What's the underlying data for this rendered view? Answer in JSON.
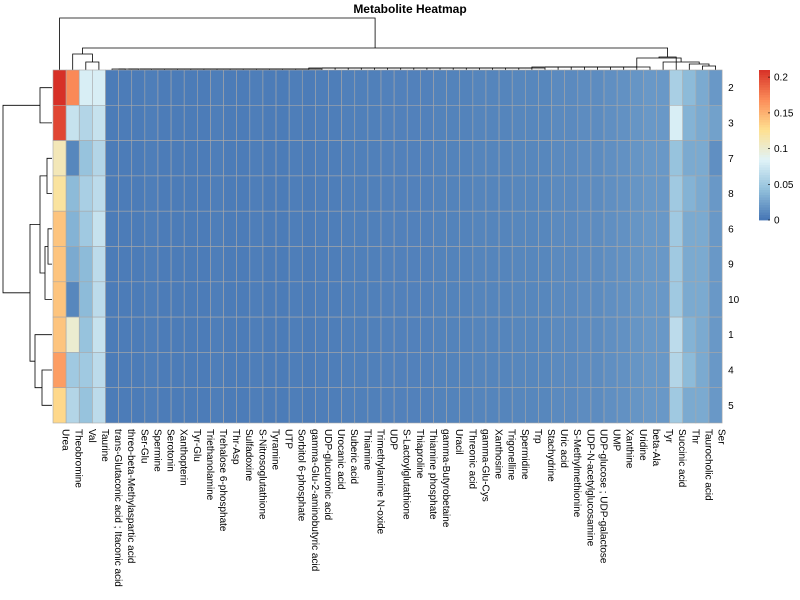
{
  "chart_data": {
    "type": "heatmap",
    "title": "Metabolite Heatmap",
    "rows": [
      "2",
      "3",
      "7",
      "8",
      "6",
      "9",
      "10",
      "1",
      "4",
      "5"
    ],
    "columns": [
      "Urea",
      "Theobromine",
      "Val",
      "Taurine",
      "trans-Glutaconic acid ; Itaconic acid",
      "threo-beta-Methylaspartic acid",
      "Ser-Glu",
      "Spermine",
      "Serotonin",
      "Xanthopterin",
      "Tyr-Glu",
      "Triethanolamine",
      "Trehalose 6-phosphate",
      "Thr-Asp",
      "Sulfadoxine",
      "S-Nitrosoglutathione",
      "Tyramine",
      "UTP",
      "Sorbitol 6-phosphate",
      "gamma-Glu-2-aminobutyric acid",
      "UDP-glucuronic acid",
      "Urocanic acid",
      "Suberic acid",
      "Thiamine",
      "Trimethylamine N-oxide",
      "UDP",
      "S-Lactoylglutathione",
      "Thiaproline",
      "Thiamine phosphate",
      "gamma-Butyrobetaine",
      "Uracil",
      "Threonic acid",
      "gamma-Glu-Cys",
      "Xanthosine",
      "Trigonelline",
      "Spermidine",
      "Trp",
      "Stachydrine",
      "Uric acid",
      "S-Methylmethionine",
      "UDP-N-acetylglucosamine",
      "UDP-glucose ; UDP-galactose",
      "UMP",
      "Xanthine",
      "Uridine",
      "beta-Ala",
      "Tyr",
      "Succinic acid",
      "Thr",
      "Taurocholic acid",
      "Ser"
    ],
    "values": [
      [
        0.21,
        0.17,
        0.08,
        0.08,
        0.004,
        0.004,
        0.004,
        0.005,
        0.004,
        0.004,
        0.004,
        0.004,
        0.005,
        0.004,
        0.004,
        0.005,
        0.004,
        0.004,
        0.005,
        0.004,
        0.005,
        0.005,
        0.006,
        0.006,
        0.006,
        0.007,
        0.007,
        0.007,
        0.007,
        0.008,
        0.008,
        0.008,
        0.009,
        0.009,
        0.009,
        0.01,
        0.01,
        0.01,
        0.012,
        0.012,
        0.013,
        0.013,
        0.015,
        0.016,
        0.018,
        0.02,
        0.02,
        0.055,
        0.04,
        0.03,
        0.02
      ],
      [
        0.2,
        0.07,
        0.06,
        0.07,
        0.004,
        0.004,
        0.004,
        0.005,
        0.004,
        0.004,
        0.004,
        0.004,
        0.005,
        0.004,
        0.004,
        0.005,
        0.004,
        0.004,
        0.005,
        0.004,
        0.005,
        0.005,
        0.006,
        0.006,
        0.006,
        0.007,
        0.007,
        0.007,
        0.007,
        0.008,
        0.008,
        0.008,
        0.009,
        0.009,
        0.009,
        0.01,
        0.01,
        0.01,
        0.012,
        0.012,
        0.013,
        0.013,
        0.015,
        0.016,
        0.018,
        0.02,
        0.02,
        0.08,
        0.035,
        0.03,
        0.025
      ],
      [
        0.11,
        0.01,
        0.045,
        0.06,
        0.004,
        0.004,
        0.004,
        0.005,
        0.004,
        0.004,
        0.004,
        0.004,
        0.005,
        0.004,
        0.004,
        0.005,
        0.004,
        0.004,
        0.005,
        0.004,
        0.005,
        0.005,
        0.006,
        0.006,
        0.006,
        0.007,
        0.007,
        0.007,
        0.007,
        0.008,
        0.008,
        0.008,
        0.009,
        0.009,
        0.009,
        0.01,
        0.01,
        0.01,
        0.012,
        0.012,
        0.013,
        0.013,
        0.015,
        0.016,
        0.018,
        0.02,
        0.02,
        0.045,
        0.03,
        0.03,
        0.015
      ],
      [
        0.12,
        0.04,
        0.055,
        0.065,
        0.004,
        0.004,
        0.004,
        0.005,
        0.004,
        0.004,
        0.004,
        0.004,
        0.005,
        0.004,
        0.004,
        0.005,
        0.004,
        0.004,
        0.005,
        0.004,
        0.005,
        0.005,
        0.006,
        0.006,
        0.006,
        0.007,
        0.007,
        0.007,
        0.007,
        0.008,
        0.008,
        0.008,
        0.009,
        0.009,
        0.009,
        0.01,
        0.01,
        0.01,
        0.012,
        0.012,
        0.013,
        0.013,
        0.015,
        0.016,
        0.018,
        0.02,
        0.02,
        0.05,
        0.035,
        0.03,
        0.02
      ],
      [
        0.14,
        0.035,
        0.05,
        0.07,
        0.004,
        0.004,
        0.004,
        0.005,
        0.004,
        0.004,
        0.004,
        0.004,
        0.005,
        0.004,
        0.004,
        0.005,
        0.004,
        0.004,
        0.005,
        0.004,
        0.005,
        0.005,
        0.006,
        0.006,
        0.006,
        0.007,
        0.007,
        0.007,
        0.007,
        0.008,
        0.008,
        0.008,
        0.009,
        0.009,
        0.009,
        0.01,
        0.01,
        0.01,
        0.012,
        0.012,
        0.013,
        0.013,
        0.015,
        0.016,
        0.018,
        0.02,
        0.02,
        0.05,
        0.03,
        0.03,
        0.02
      ],
      [
        0.14,
        0.03,
        0.04,
        0.065,
        0.004,
        0.004,
        0.004,
        0.005,
        0.004,
        0.004,
        0.004,
        0.004,
        0.005,
        0.004,
        0.004,
        0.005,
        0.004,
        0.004,
        0.005,
        0.004,
        0.005,
        0.005,
        0.006,
        0.006,
        0.006,
        0.007,
        0.007,
        0.007,
        0.007,
        0.008,
        0.008,
        0.008,
        0.009,
        0.009,
        0.009,
        0.01,
        0.01,
        0.01,
        0.012,
        0.012,
        0.013,
        0.013,
        0.015,
        0.016,
        0.018,
        0.02,
        0.02,
        0.05,
        0.03,
        0.03,
        0.02
      ],
      [
        0.14,
        0.01,
        0.04,
        0.065,
        0.004,
        0.004,
        0.004,
        0.005,
        0.004,
        0.004,
        0.004,
        0.004,
        0.005,
        0.004,
        0.004,
        0.005,
        0.004,
        0.004,
        0.005,
        0.004,
        0.005,
        0.005,
        0.006,
        0.006,
        0.006,
        0.007,
        0.007,
        0.007,
        0.007,
        0.008,
        0.008,
        0.008,
        0.009,
        0.009,
        0.009,
        0.01,
        0.01,
        0.01,
        0.012,
        0.012,
        0.013,
        0.013,
        0.015,
        0.016,
        0.018,
        0.02,
        0.02,
        0.05,
        0.03,
        0.03,
        0.02
      ],
      [
        0.14,
        0.1,
        0.045,
        0.07,
        0.004,
        0.004,
        0.004,
        0.005,
        0.004,
        0.004,
        0.004,
        0.004,
        0.005,
        0.004,
        0.004,
        0.005,
        0.004,
        0.004,
        0.005,
        0.004,
        0.005,
        0.005,
        0.006,
        0.006,
        0.006,
        0.007,
        0.007,
        0.007,
        0.007,
        0.008,
        0.008,
        0.008,
        0.009,
        0.009,
        0.009,
        0.01,
        0.01,
        0.01,
        0.012,
        0.012,
        0.013,
        0.013,
        0.015,
        0.016,
        0.018,
        0.02,
        0.02,
        0.065,
        0.035,
        0.03,
        0.02
      ],
      [
        0.16,
        0.05,
        0.05,
        0.065,
        0.004,
        0.004,
        0.004,
        0.005,
        0.004,
        0.004,
        0.004,
        0.004,
        0.005,
        0.004,
        0.004,
        0.005,
        0.004,
        0.004,
        0.005,
        0.004,
        0.005,
        0.005,
        0.006,
        0.006,
        0.006,
        0.007,
        0.007,
        0.007,
        0.007,
        0.008,
        0.008,
        0.008,
        0.009,
        0.009,
        0.009,
        0.01,
        0.01,
        0.01,
        0.012,
        0.012,
        0.013,
        0.013,
        0.015,
        0.016,
        0.018,
        0.02,
        0.02,
        0.06,
        0.04,
        0.03,
        0.02
      ],
      [
        0.13,
        0.06,
        0.045,
        0.065,
        0.004,
        0.004,
        0.004,
        0.005,
        0.004,
        0.004,
        0.004,
        0.004,
        0.005,
        0.004,
        0.004,
        0.005,
        0.004,
        0.004,
        0.005,
        0.004,
        0.005,
        0.005,
        0.006,
        0.006,
        0.006,
        0.007,
        0.007,
        0.007,
        0.007,
        0.008,
        0.008,
        0.008,
        0.009,
        0.009,
        0.009,
        0.01,
        0.01,
        0.01,
        0.012,
        0.012,
        0.013,
        0.013,
        0.015,
        0.016,
        0.018,
        0.02,
        0.02,
        0.05,
        0.03,
        0.03,
        0.02
      ]
    ],
    "colorscale": {
      "min": 0,
      "max": 0.21,
      "stops": [
        "#4575b4",
        "#91bfdb",
        "#e0f3f8",
        "#fee090",
        "#fc8d59",
        "#d73027"
      ]
    },
    "legend_ticks": [
      {
        "label": "0",
        "value": 0
      },
      {
        "label": "0.05",
        "value": 0.05
      },
      {
        "label": "0.1",
        "value": 0.1
      },
      {
        "label": "0.15",
        "value": 0.15
      },
      {
        "label": "0.2",
        "value": 0.2
      }
    ],
    "legend_position": "right",
    "row_dendrogram": true,
    "column_dendrogram": true
  }
}
